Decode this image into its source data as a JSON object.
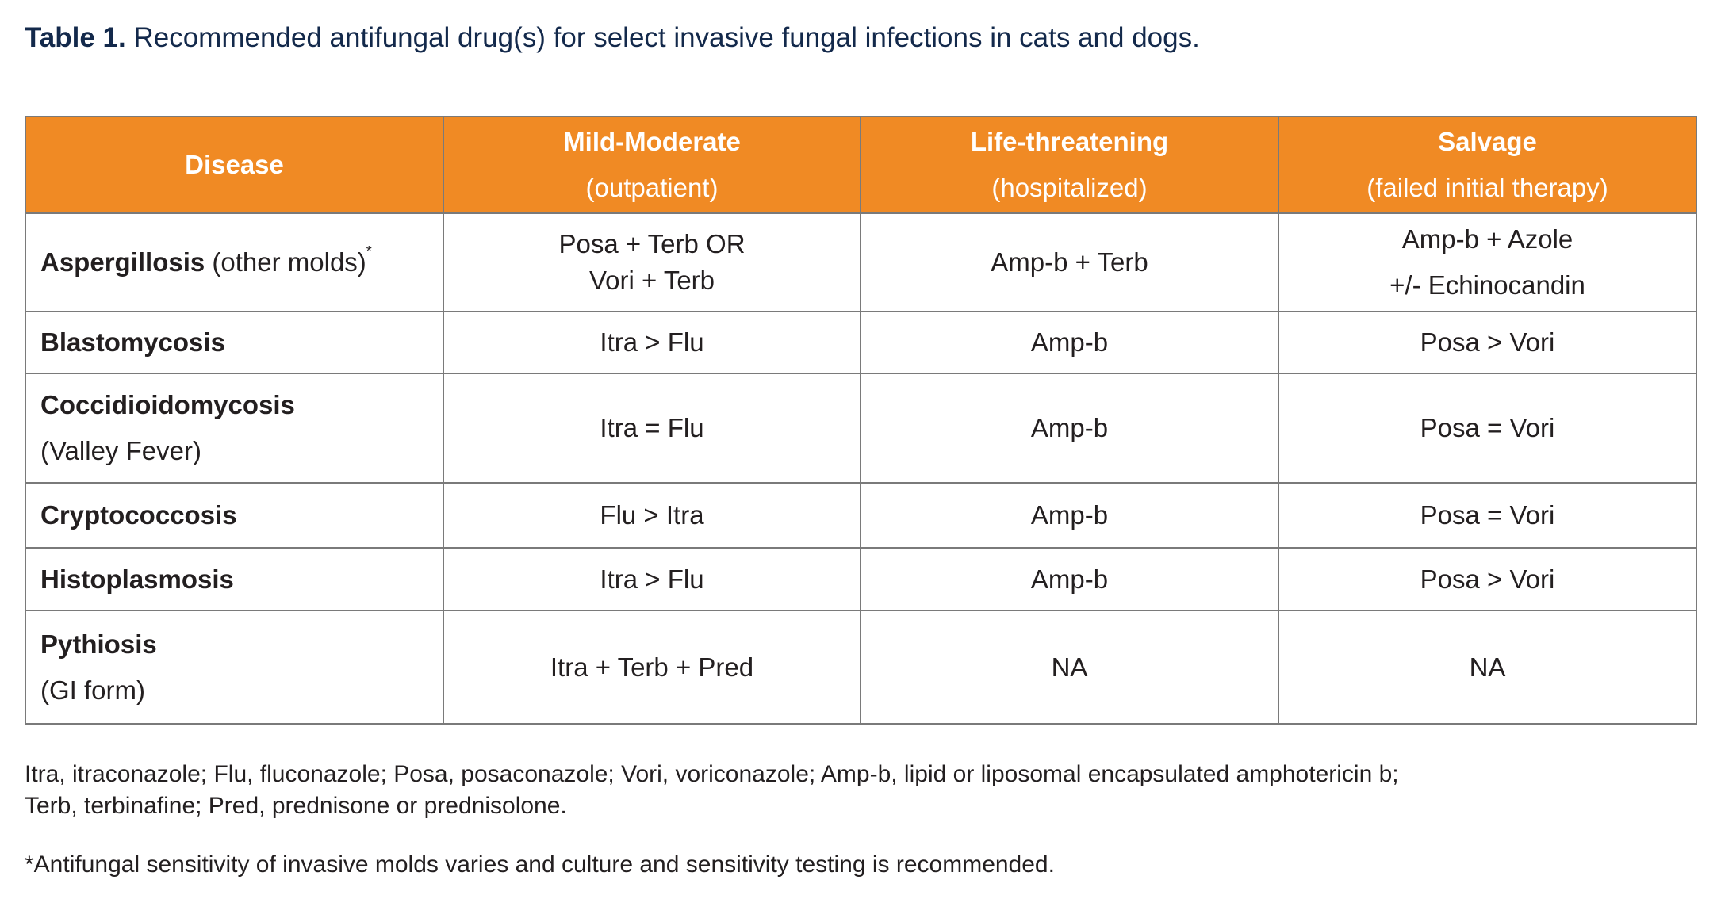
{
  "title": {
    "label": "Table 1.",
    "text": "Recommended antifungal drug(s) for select invasive fungal infections in cats and dogs."
  },
  "table": {
    "headers": [
      {
        "main": "Disease",
        "sub": ""
      },
      {
        "main": "Mild-Moderate",
        "sub": "(outpatient)"
      },
      {
        "main": "Life-threatening",
        "sub": "(hospitalized)"
      },
      {
        "main": "Salvage",
        "sub": "(failed initial therapy)"
      }
    ],
    "rows": [
      {
        "disease": "Aspergillosis",
        "disease_extra": "(other molds)",
        "marker": "*",
        "mild": [
          "Posa + Terb OR",
          "Vori + Terb"
        ],
        "life": [
          "Amp-b + Terb"
        ],
        "salvage": [
          "Amp-b + Azole",
          "+/- Echinocandin"
        ]
      },
      {
        "disease": "Blastomycosis",
        "disease_extra": "",
        "marker": "",
        "mild": [
          "Itra > Flu"
        ],
        "life": [
          "Amp-b"
        ],
        "salvage": [
          "Posa > Vori"
        ]
      },
      {
        "disease": "Coccidioidomycosis",
        "disease_extra": "(Valley Fever)",
        "marker": "",
        "mild": [
          "Itra = Flu"
        ],
        "life": [
          "Amp-b"
        ],
        "salvage": [
          "Posa = Vori"
        ]
      },
      {
        "disease": "Cryptococcosis",
        "disease_extra": "",
        "marker": "",
        "mild": [
          "Flu > Itra"
        ],
        "life": [
          "Amp-b"
        ],
        "salvage": [
          "Posa = Vori"
        ]
      },
      {
        "disease": "Histoplasmosis",
        "disease_extra": "",
        "marker": "",
        "mild": [
          "Itra > Flu"
        ],
        "life": [
          "Amp-b"
        ],
        "salvage": [
          "Posa > Vori"
        ]
      },
      {
        "disease": "Pythiosis",
        "disease_extra": "(GI form)",
        "marker": "",
        "mild": [
          "Itra + Terb + Pred"
        ],
        "life": [
          "NA"
        ],
        "salvage": [
          "NA"
        ]
      }
    ]
  },
  "notes": {
    "abbrev_line1": "Itra, itraconazole; Flu, fluconazole; Posa, posaconazole; Vori, voriconazole; Amp-b, lipid or liposomal encapsulated amphotericin b;",
    "abbrev_line2": "Terb, terbinafine; Pred, prednisone or prednisolone.",
    "footnote": "*Antifungal sensitivity of invasive molds varies and culture and sensitivity testing is recommended."
  },
  "colors": {
    "header_bg": "#f08a24",
    "title": "#13294b",
    "border": "#7a7a7a"
  }
}
